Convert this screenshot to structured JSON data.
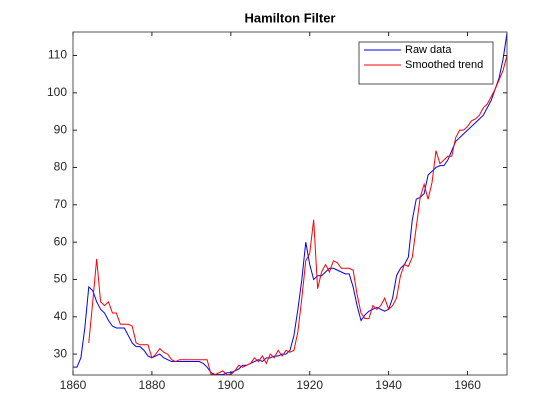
{
  "chart_data": {
    "type": "line",
    "title": "Hamilton  Filter",
    "x": [
      1860,
      1861,
      1862,
      1863,
      1864,
      1865,
      1866,
      1867,
      1868,
      1869,
      1870,
      1871,
      1872,
      1873,
      1874,
      1875,
      1876,
      1877,
      1878,
      1879,
      1880,
      1881,
      1882,
      1883,
      1884,
      1885,
      1886,
      1887,
      1888,
      1889,
      1890,
      1891,
      1892,
      1893,
      1894,
      1895,
      1896,
      1897,
      1898,
      1899,
      1900,
      1901,
      1902,
      1903,
      1904,
      1905,
      1906,
      1907,
      1908,
      1909,
      1910,
      1911,
      1912,
      1913,
      1914,
      1915,
      1916,
      1917,
      1918,
      1919,
      1920,
      1921,
      1922,
      1923,
      1924,
      1925,
      1926,
      1927,
      1928,
      1929,
      1930,
      1931,
      1932,
      1933,
      1934,
      1935,
      1936,
      1937,
      1938,
      1939,
      1940,
      1941,
      1942,
      1943,
      1944,
      1945,
      1946,
      1947,
      1948,
      1949,
      1950,
      1951,
      1952,
      1953,
      1954,
      1955,
      1956,
      1957,
      1958,
      1959,
      1960,
      1961,
      1962,
      1963,
      1964,
      1965,
      1966,
      1967,
      1968,
      1969,
      1970
    ],
    "series": [
      {
        "name": "Raw data",
        "color": "#0000ff",
        "values": [
          26.5,
          26.5,
          29,
          37,
          48,
          47,
          44,
          42,
          41,
          39,
          37.5,
          37,
          37,
          37,
          35,
          33,
          32,
          32,
          31,
          29.5,
          29,
          29.5,
          30,
          29,
          28.5,
          28,
          28,
          28,
          28,
          28,
          28,
          28,
          28,
          27.5,
          26.5,
          25,
          24.5,
          24.5,
          24.5,
          25,
          25,
          25.5,
          26,
          27,
          27,
          27.5,
          28,
          28.5,
          28,
          29,
          29,
          29.5,
          29.5,
          30,
          30,
          31,
          35,
          42,
          50,
          60,
          54,
          50,
          51,
          51,
          52,
          53,
          53,
          52.5,
          52,
          51.5,
          51.5,
          48,
          43,
          39,
          40.5,
          41.5,
          42,
          42.5,
          42,
          41.5,
          42,
          45,
          51,
          53,
          54,
          56,
          66,
          71.5,
          72,
          73,
          78,
          79,
          80,
          80.5,
          80.5,
          82,
          84.5,
          87,
          88,
          89,
          90,
          91,
          92,
          93,
          94,
          96,
          98,
          101,
          104,
          109,
          116
        ]
      },
      {
        "name": "Smoothed trend",
        "color": "#ff0000",
        "values": [
          null,
          null,
          null,
          null,
          33,
          44,
          55.5,
          44,
          43,
          44,
          41,
          41,
          38,
          38,
          38,
          37.5,
          33,
          32.5,
          32.5,
          32.5,
          29,
          30,
          31.5,
          30.5,
          30,
          28.5,
          28,
          28.5,
          28.5,
          28.5,
          28.5,
          28.5,
          28.5,
          28.5,
          28.5,
          24.5,
          24.5,
          25,
          25.5,
          24.5,
          24.5,
          25.5,
          27,
          26.5,
          27,
          27.5,
          29,
          28,
          29.5,
          27.5,
          30,
          29,
          31,
          29.5,
          31,
          30.5,
          31,
          36,
          45,
          55,
          57,
          66,
          47.5,
          52,
          54,
          52,
          55,
          54.5,
          53,
          53,
          53,
          52.5,
          46,
          41,
          39.5,
          39.5,
          43,
          42,
          43,
          45,
          42,
          43,
          45,
          51,
          54,
          53.5,
          56,
          64,
          72,
          75.5,
          71.5,
          76,
          84.5,
          81,
          82,
          83,
          83,
          88,
          90,
          90,
          91,
          92.5,
          93,
          94,
          96,
          97,
          99,
          101,
          103.5,
          106,
          110
        ]
      }
    ],
    "xlim": [
      1860,
      1970
    ],
    "xticks": [
      1860,
      1880,
      1900,
      1920,
      1940,
      1960
    ],
    "ylim": [
      24.4,
      116.3
    ],
    "yticks": [
      30,
      40,
      50,
      60,
      70,
      80,
      90,
      100,
      110
    ],
    "grid": false,
    "legend": "northeast"
  }
}
